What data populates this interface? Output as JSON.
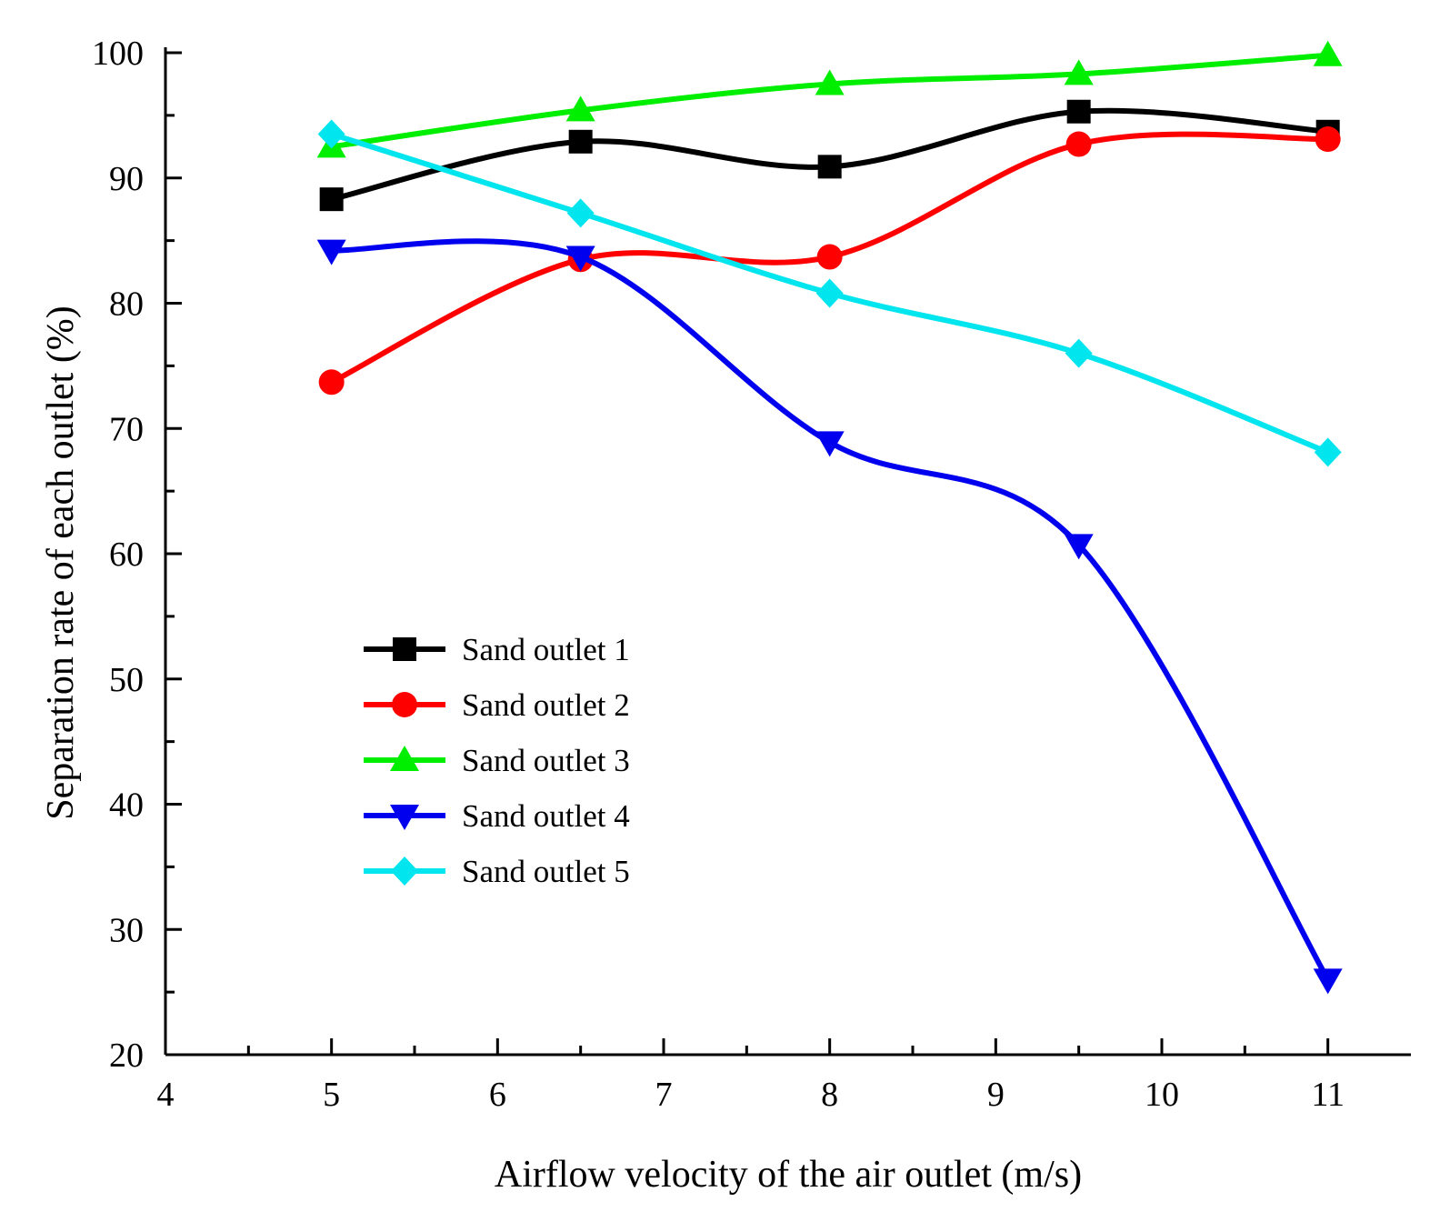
{
  "chart_data": {
    "type": "line",
    "title": "",
    "xlabel": "Airflow velocity of the air outlet (m/s)",
    "ylabel": "Separation rate of each outlet (%)",
    "xlim": [
      4,
      11.5
    ],
    "ylim": [
      20,
      100
    ],
    "x_ticks": [
      4,
      5,
      6,
      7,
      8,
      9,
      10,
      11
    ],
    "y_ticks": [
      20,
      30,
      40,
      50,
      60,
      70,
      80,
      90,
      100
    ],
    "x_tick_labels": [
      "4",
      "5",
      "6",
      "7",
      "8",
      "9",
      "10",
      "11"
    ],
    "y_tick_labels": [
      "20",
      "30",
      "40",
      "50",
      "60",
      "70",
      "80",
      "90",
      "100"
    ],
    "x": [
      5,
      6.5,
      8,
      9.5,
      11
    ],
    "grid": false,
    "legend_position": "center-left",
    "series": [
      {
        "name": "Sand outlet 1",
        "color": "#000000",
        "marker": "square",
        "values": [
          88.3,
          92.9,
          90.9,
          95.3,
          93.7
        ]
      },
      {
        "name": "Sand outlet 2",
        "color": "#ff0000",
        "marker": "circle",
        "values": [
          73.7,
          83.5,
          83.7,
          92.7,
          93.1
        ]
      },
      {
        "name": "Sand outlet 3",
        "color": "#00ee00",
        "marker": "triangle-up",
        "values": [
          92.5,
          95.4,
          97.5,
          98.3,
          99.8
        ]
      },
      {
        "name": "Sand outlet 4",
        "color": "#0000ee",
        "marker": "triangle-down",
        "values": [
          84.2,
          83.7,
          68.9,
          60.7,
          26.0
        ]
      },
      {
        "name": "Sand outlet 5",
        "color": "#00e5ee",
        "marker": "diamond",
        "values": [
          93.5,
          87.2,
          80.8,
          76.0,
          68.1
        ]
      }
    ]
  }
}
